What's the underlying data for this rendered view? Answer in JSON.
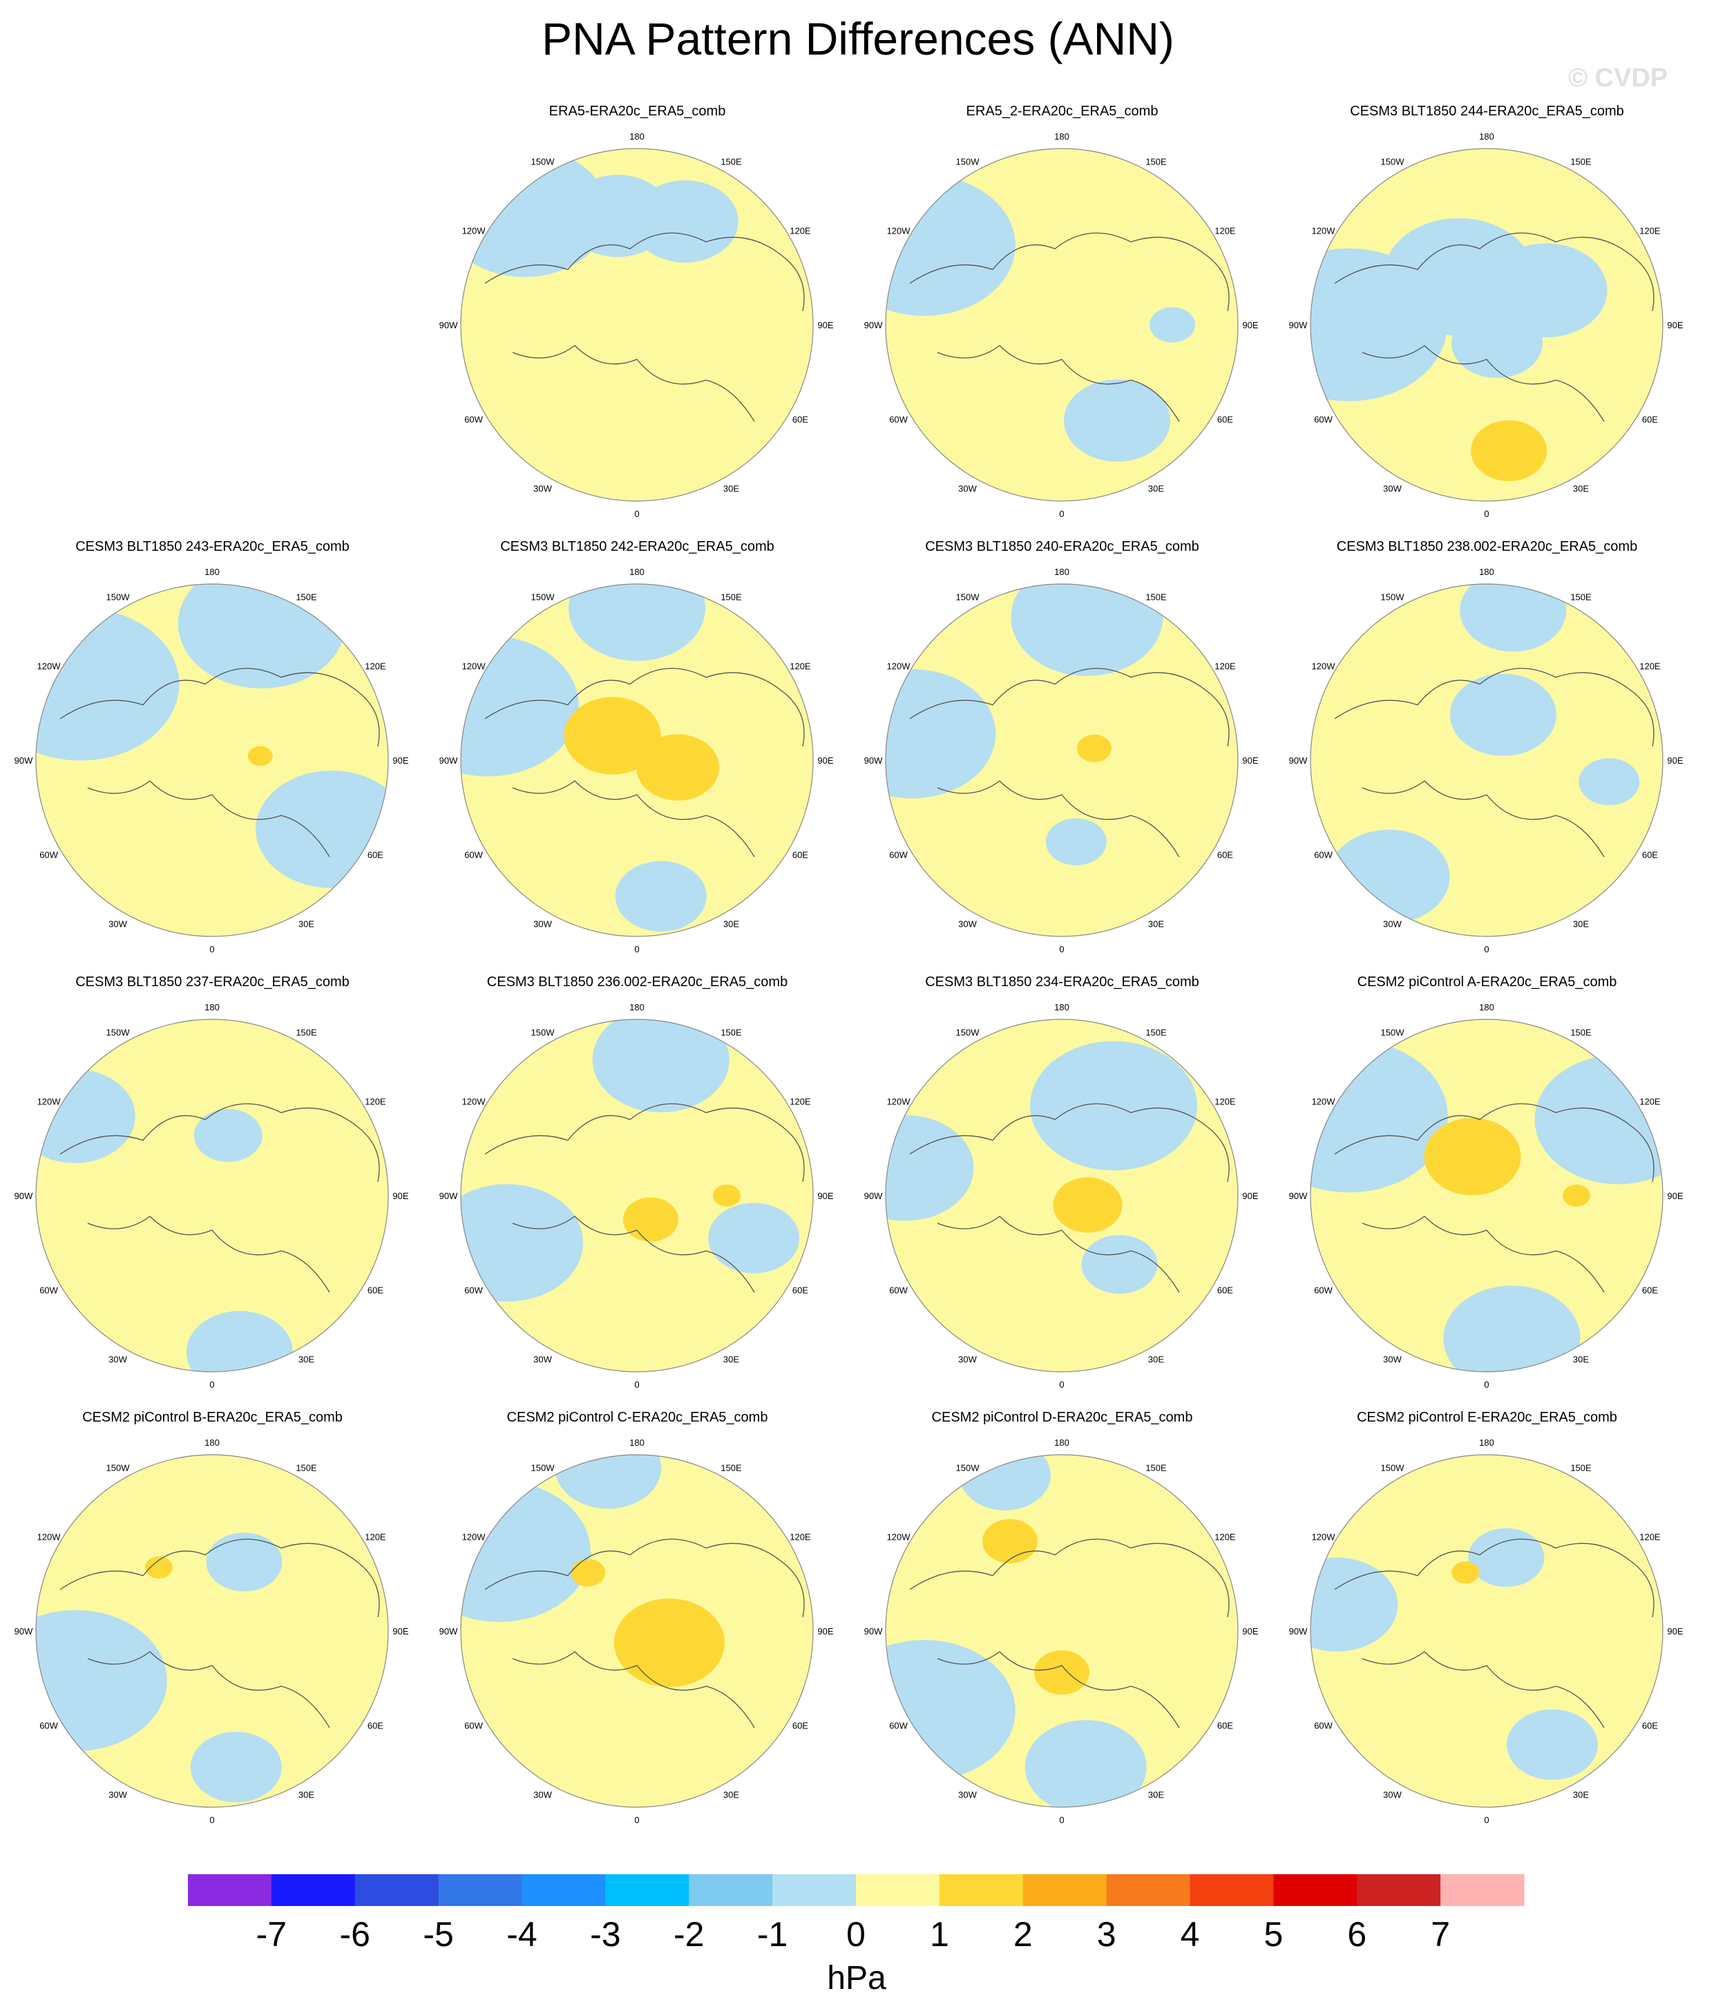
{
  "title": "PNA Pattern Differences (ANN)",
  "watermark": "© CVDP",
  "longitude_labels": [
    "180",
    "150E",
    "120E",
    "90E",
    "60E",
    "30E",
    "0",
    "30W",
    "60W",
    "90W",
    "120W",
    "150W"
  ],
  "panels": [
    {
      "title": "ERA5-ERA20c_ERA5_comb",
      "negative_blobs": [
        [
          -45,
          230,
          110
        ],
        [
          -10,
          160,
          70
        ],
        [
          25,
          165,
          70
        ]
      ],
      "positive_blobs": []
    },
    {
      "title": "ERA5_2-ERA20c_ERA5_comb",
      "negative_blobs": [
        [
          -60,
          230,
          120
        ],
        [
          150,
          160,
          70
        ],
        [
          90,
          160,
          30
        ]
      ],
      "positive_blobs": []
    },
    {
      "title": "CESM3 BLT1850 244-ERA20c_ERA5_comb",
      "negative_blobs": [
        [
          -90,
          200,
          130
        ],
        [
          -30,
          80,
          100
        ],
        [
          60,
          100,
          80
        ],
        [
          150,
          30,
          60
        ]
      ],
      "positive_blobs": [
        [
          170,
          185,
          55
        ]
      ]
    },
    {
      "title": "CESM3 BLT1850 243-ERA20c_ERA5_comb",
      "negative_blobs": [
        [
          -60,
          220,
          130
        ],
        [
          20,
          210,
          110
        ],
        [
          120,
          200,
          100
        ]
      ],
      "positive_blobs": [
        [
          85,
          70,
          18
        ]
      ]
    },
    {
      "title": "CESM3 BLT1850 242-ERA20c_ERA5_comb",
      "negative_blobs": [
        [
          -70,
          230,
          120
        ],
        [
          0,
          220,
          90
        ],
        [
          170,
          200,
          60
        ]
      ],
      "positive_blobs": [
        [
          -45,
          50,
          70
        ],
        [
          100,
          60,
          60
        ]
      ]
    },
    {
      "title": "CESM3 BLT1850 240-ERA20c_ERA5_comb",
      "negative_blobs": [
        [
          -80,
          220,
          110
        ],
        [
          10,
          210,
          100
        ],
        [
          170,
          120,
          40
        ]
      ],
      "positive_blobs": [
        [
          70,
          50,
          25
        ]
      ]
    },
    {
      "title": "CESM3 BLT1850 238.002-ERA20c_ERA5_comb",
      "negative_blobs": [
        [
          -140,
          220,
          80
        ],
        [
          20,
          70,
          70
        ],
        [
          10,
          220,
          70
        ],
        [
          100,
          180,
          40
        ]
      ],
      "positive_blobs": []
    },
    {
      "title": "CESM3 BLT1850 237-ERA20c_ERA5_comb",
      "negative_blobs": [
        [
          -60,
          230,
          80
        ],
        [
          15,
          90,
          45
        ],
        [
          170,
          230,
          70
        ]
      ],
      "positive_blobs": []
    },
    {
      "title": "CESM3 BLT1850 236.002-ERA20c_ERA5_comb",
      "negative_blobs": [
        [
          -110,
          200,
          100
        ],
        [
          10,
          200,
          90
        ],
        [
          110,
          180,
          60
        ]
      ],
      "positive_blobs": [
        [
          150,
          40,
          40
        ],
        [
          90,
          130,
          20
        ]
      ]
    },
    {
      "title": "CESM3 BLT1850 234-ERA20c_ERA5_comb",
      "negative_blobs": [
        [
          -80,
          230,
          90
        ],
        [
          30,
          150,
          110
        ],
        [
          140,
          130,
          50
        ]
      ],
      "positive_blobs": [
        [
          110,
          40,
          50
        ]
      ]
    },
    {
      "title": "CESM2 piControl A-ERA20c_ERA5_comb",
      "negative_blobs": [
        [
          -60,
          230,
          130
        ],
        [
          60,
          220,
          110
        ],
        [
          170,
          210,
          90
        ]
      ],
      "positive_blobs": [
        [
          -20,
          60,
          70
        ],
        [
          90,
          130,
          20
        ]
      ]
    },
    {
      "title": "CESM2 piControl B-ERA20c_ERA5_comb",
      "negative_blobs": [
        [
          -110,
          210,
          120
        ],
        [
          170,
          200,
          60
        ],
        [
          25,
          110,
          50
        ]
      ],
      "positive_blobs": [
        [
          -40,
          120,
          20
        ]
      ]
    },
    {
      "title": "CESM2 piControl C-ERA20c_ERA5_comb",
      "negative_blobs": [
        [
          -60,
          230,
          120
        ],
        [
          -10,
          240,
          70
        ]
      ],
      "positive_blobs": [
        [
          110,
          50,
          80
        ],
        [
          -40,
          110,
          25
        ]
      ]
    },
    {
      "title": "CESM2 piControl D-ERA20c_ERA5_comb",
      "negative_blobs": [
        [
          -120,
          230,
          120
        ],
        [
          170,
          200,
          80
        ],
        [
          -20,
          240,
          60
        ]
      ],
      "positive_blobs": [
        [
          -30,
          150,
          40
        ],
        [
          180,
          60,
          40
        ]
      ]
    },
    {
      "title": "CESM2 piControl E-ERA20c_ERA5_comb",
      "negative_blobs": [
        [
          -80,
          220,
          80
        ],
        [
          15,
          110,
          50
        ],
        [
          150,
          190,
          60
        ]
      ],
      "positive_blobs": [
        [
          -20,
          90,
          20
        ]
      ]
    }
  ],
  "colorbar": {
    "unit": "hPa",
    "tick_labels": [
      "-7",
      "-6",
      "-5",
      "-4",
      "-3",
      "-2",
      "-1",
      "0",
      "1",
      "2",
      "3",
      "4",
      "5",
      "6",
      "7"
    ],
    "colors": [
      "#8a2be2",
      "#1a1aff",
      "#2e4de0",
      "#3377e8",
      "#1e90ff",
      "#00bfff",
      "#7ecaf0",
      "#b3e0f5",
      "#fdf9a0",
      "#fdd835",
      "#fbab18",
      "#f77a1c",
      "#f5400f",
      "#e00000",
      "#cc2222",
      "#ffb3b3"
    ]
  },
  "colors": {
    "background": "#fdf9a0",
    "negative": "#b5def2",
    "positive": "#fdd835",
    "coast": "#555555",
    "rim": "#888888"
  }
}
